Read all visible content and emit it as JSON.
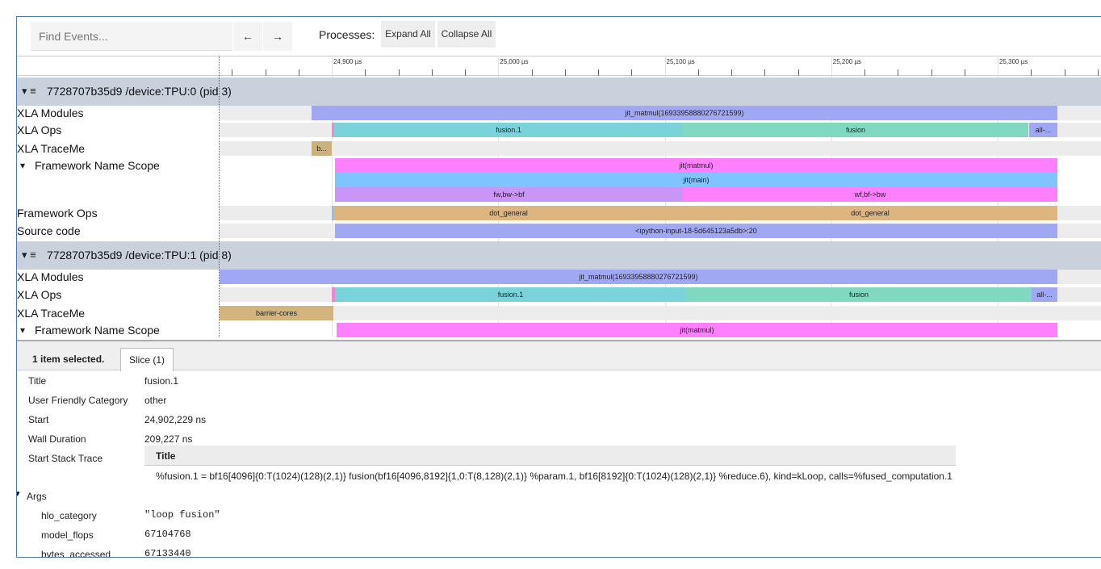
{
  "toolbar": {
    "search_placeholder": "Find Events...",
    "back": "←",
    "forward": "→",
    "processes_label": "Processes:",
    "expand_all": "Expand All",
    "collapse_all": "Collapse All"
  },
  "ruler": {
    "ticks": [
      "24,900 µs",
      "25,000 µs",
      "25,100 µs",
      "25,200 µs",
      "25,300 µs"
    ]
  },
  "processes": [
    {
      "header": "7728707b35d9 /device:TPU:0 (pid 3)",
      "tracks": [
        {
          "label": "XLA Modules",
          "slices": [
            "jit_matmul(16933958880276721599)"
          ]
        },
        {
          "label": "XLA Ops",
          "slices": [
            "fusion.1",
            "fusion",
            "all-..."
          ]
        },
        {
          "label": "XLA TraceMe",
          "slices": [
            "b..."
          ]
        },
        {
          "label": "Framework Name Scope",
          "slices": [
            "jit(matmul)",
            "jit(main)",
            "fw,bw->bf",
            "wf,bf->bw"
          ]
        },
        {
          "label": "Framework Ops",
          "slices": [
            "dot_general",
            "dot_general"
          ]
        },
        {
          "label": "Source code",
          "slices": [
            "<ipython-input-18-5d645123a5db>:20"
          ]
        }
      ]
    },
    {
      "header": "7728707b35d9 /device:TPU:1 (pid 8)",
      "tracks": [
        {
          "label": "XLA Modules",
          "slices": [
            "jit_matmul(16933958880276721599)"
          ]
        },
        {
          "label": "XLA Ops",
          "slices": [
            "fusion.1",
            "fusion",
            "all-..."
          ]
        },
        {
          "label": "XLA TraceMe",
          "slices": [
            "barrier-cores"
          ]
        },
        {
          "label": "Framework Name Scope",
          "slices": [
            "jit(matmul)"
          ]
        }
      ]
    }
  ],
  "details": {
    "selection": "1 item selected.",
    "tab": "Slice (1)",
    "rows": [
      [
        "Title",
        "fusion.1"
      ],
      [
        "User Friendly Category",
        "other"
      ],
      [
        "Start",
        "24,902,229 ns"
      ],
      [
        "Wall Duration",
        "209,227 ns"
      ]
    ],
    "stack_trace": {
      "label": "Start Stack Trace",
      "header": "Title",
      "line": "%fusion.1 = bf16[4096]{0:T(1024)(128)(2,1)} fusion(bf16[4096,8192]{1,0:T(8,128)(2,1)} %param.1, bf16[8192]{0:T(1024)(128)(2,1)} %reduce.6), kind=kLoop, calls=%fused_computation.1"
    },
    "args": {
      "label": "Args",
      "rows": [
        [
          "hlo_category",
          "\"loop fusion\""
        ],
        [
          "model_flops",
          "67104768"
        ],
        [
          "bytes_accessed",
          "67133440"
        ]
      ]
    }
  }
}
